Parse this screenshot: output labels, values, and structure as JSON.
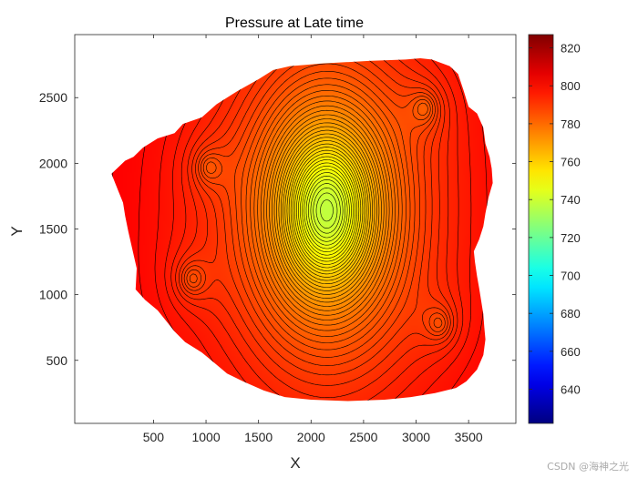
{
  "chart_data": {
    "type": "contour",
    "title": "Pressure at Late time",
    "xlabel": "X",
    "ylabel": "Y",
    "xlim": [
      -250,
      3950
    ],
    "ylim": [
      20,
      2980
    ],
    "xticks": [
      500,
      1000,
      1500,
      2000,
      2500,
      3000,
      3500
    ],
    "yticks": [
      500,
      1000,
      1500,
      2000,
      2500
    ],
    "colorbar": {
      "colormap": "jet",
      "range": [
        622,
        827
      ],
      "ticks": [
        640,
        660,
        680,
        700,
        720,
        740,
        760,
        780,
        800,
        820
      ]
    },
    "background_pressure": 806,
    "wells": [
      {
        "type": "producer",
        "x": 2150,
        "y": 1640,
        "min_pressure": 738
      },
      {
        "type": "producer",
        "x": 1030,
        "y": 1970,
        "min_pressure": 796
      },
      {
        "type": "producer",
        "x": 870,
        "y": 1120,
        "min_pressure": 795
      },
      {
        "type": "producer",
        "x": 3080,
        "y": 2420,
        "min_pressure": 795
      },
      {
        "type": "producer",
        "x": 3220,
        "y": 780,
        "min_pressure": 796
      }
    ],
    "domain_boundary": [
      [
        100,
        1920
      ],
      [
        230,
        2020
      ],
      [
        310,
        2050
      ],
      [
        400,
        2120
      ],
      [
        540,
        2190
      ],
      [
        700,
        2230
      ],
      [
        780,
        2300
      ],
      [
        960,
        2350
      ],
      [
        1100,
        2450
      ],
      [
        1300,
        2550
      ],
      [
        1500,
        2640
      ],
      [
        1640,
        2710
      ],
      [
        1800,
        2740
      ],
      [
        1950,
        2750
      ],
      [
        2100,
        2760
      ],
      [
        2330,
        2770
      ],
      [
        2550,
        2780
      ],
      [
        2900,
        2790
      ],
      [
        3040,
        2800
      ],
      [
        3150,
        2790
      ],
      [
        3320,
        2740
      ],
      [
        3400,
        2680
      ],
      [
        3450,
        2560
      ],
      [
        3500,
        2430
      ],
      [
        3580,
        2380
      ],
      [
        3640,
        2270
      ],
      [
        3660,
        2150
      ],
      [
        3700,
        2050
      ],
      [
        3720,
        1960
      ],
      [
        3730,
        1850
      ],
      [
        3690,
        1740
      ],
      [
        3660,
        1620
      ],
      [
        3640,
        1520
      ],
      [
        3600,
        1420
      ],
      [
        3550,
        1330
      ],
      [
        3560,
        1250
      ],
      [
        3580,
        1140
      ],
      [
        3600,
        1050
      ],
      [
        3620,
        950
      ],
      [
        3640,
        850
      ],
      [
        3650,
        750
      ],
      [
        3660,
        660
      ],
      [
        3640,
        540
      ],
      [
        3580,
        430
      ],
      [
        3480,
        340
      ],
      [
        3380,
        290
      ],
      [
        3180,
        250
      ],
      [
        2950,
        220
      ],
      [
        2700,
        200
      ],
      [
        2350,
        190
      ],
      [
        2000,
        200
      ],
      [
        1750,
        220
      ],
      [
        1550,
        270
      ],
      [
        1350,
        340
      ],
      [
        1200,
        400
      ],
      [
        1080,
        480
      ],
      [
        960,
        560
      ],
      [
        800,
        640
      ],
      [
        700,
        720
      ],
      [
        620,
        800
      ],
      [
        540,
        880
      ],
      [
        420,
        960
      ],
      [
        330,
        1040
      ],
      [
        340,
        1200
      ],
      [
        300,
        1340
      ],
      [
        260,
        1480
      ],
      [
        230,
        1600
      ],
      [
        210,
        1700
      ],
      [
        160,
        1800
      ],
      [
        100,
        1920
      ]
    ]
  }
}
